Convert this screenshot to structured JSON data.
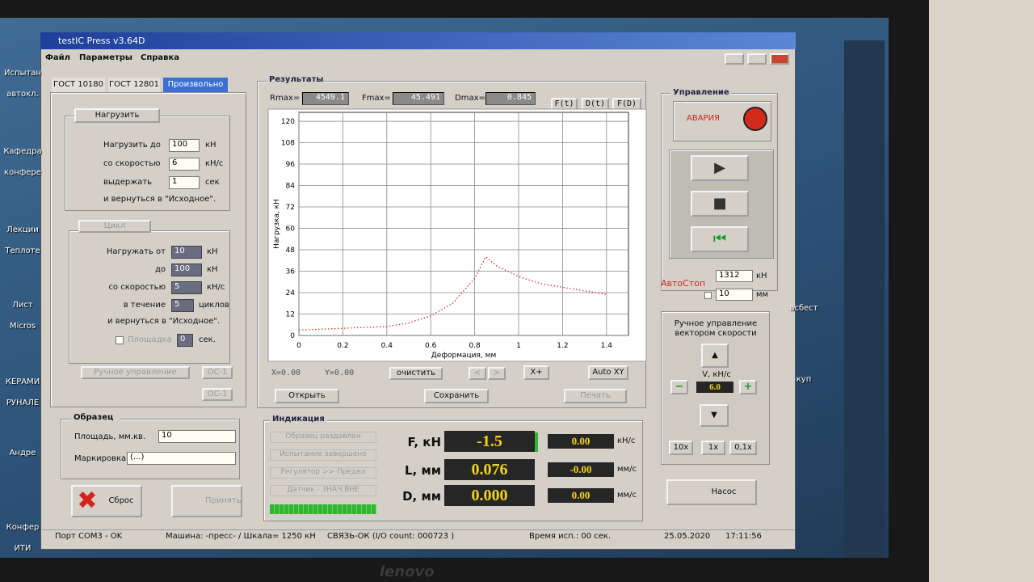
{
  "window": {
    "title": "testIC Press v3.64D",
    "menu": [
      "Файл",
      "Параметры",
      "Справка"
    ]
  },
  "tabs": [
    "ГОСТ 10180",
    "ГОСТ 12801",
    "Произвольно"
  ],
  "load": {
    "button": "Нагрузить",
    "rows": [
      {
        "label": "Нагрузить до",
        "value": "100",
        "unit": "кН"
      },
      {
        "label": "со скоростью",
        "value": "6",
        "unit": "кН/с"
      },
      {
        "label": "выдержать",
        "value": "1",
        "unit": "сек"
      }
    ],
    "return": "и вернуться в \"Исходное\"."
  },
  "cycle": {
    "button": "Цикл",
    "rows": [
      {
        "label": "Нагружать  от",
        "value": "10",
        "unit": "кН"
      },
      {
        "label": "до",
        "value": "100",
        "unit": "кН"
      },
      {
        "label": "со скоростью",
        "value": "5",
        "unit": "кН/с"
      },
      {
        "label": "в течение",
        "value": "5",
        "unit": "циклов"
      }
    ],
    "return": "и вернуться в \"Исходное\".",
    "platform": {
      "label": "Площадка",
      "value": "0",
      "unit": "сек."
    }
  },
  "manual_button": "Ручное управление",
  "os_buttons": [
    "ОС-1",
    "ОС-1"
  ],
  "sample": {
    "title": "Образец",
    "area_label": "Площадь, мм.кв.",
    "area": "10",
    "marking_label": "Маркировка",
    "marking": "(...)"
  },
  "reset": "Сброс",
  "accept": "Принять",
  "results": {
    "title": "Результаты",
    "stats": [
      {
        "label": "Rmax=",
        "value": "4549.1"
      },
      {
        "label": "Fmax=",
        "value": "45.491"
      },
      {
        "label": "Dmax=",
        "value": "0.845"
      }
    ],
    "modes": [
      "F(t)",
      "D(t)",
      "F(D)"
    ],
    "cursor": [
      "X=0.00",
      "Y=0.00"
    ],
    "clear": "очистить",
    "nav": [
      "<",
      ">"
    ],
    "x_plus": "X+",
    "auto": "Auto XY",
    "open": "Открыть",
    "save": "Сохранить",
    "print": "Печать"
  },
  "chart_data": {
    "type": "line",
    "x_label": "Деформация, мм",
    "y_label": "Нагрузка, кН",
    "x": [
      0,
      0.2,
      0.4,
      0.5,
      0.6,
      0.7,
      0.8,
      0.85,
      0.9,
      1.0,
      1.1,
      1.2,
      1.3,
      1.4
    ],
    "values": [
      3,
      4,
      5,
      7,
      11,
      18,
      32,
      44,
      39,
      33,
      29,
      27,
      25,
      23
    ],
    "color": "#e03020",
    "xlim": [
      0,
      1.5
    ],
    "ylim": [
      0,
      125
    ],
    "xticks": [
      0,
      0.2,
      0.4,
      0.6,
      0.8,
      1,
      1.2,
      1.4
    ],
    "yticks": [
      0,
      12,
      24,
      36,
      48,
      60,
      72,
      84,
      96,
      108,
      120
    ],
    "grid": true
  },
  "indication": {
    "title": "Индикация",
    "flags": [
      "Образец раздавлен",
      "Испытание завершено",
      "Регулятор >> Предел",
      "Датчик - ЗНАЧ.ВНЕ"
    ],
    "readings": [
      {
        "label": "F, кН",
        "value": "-1.5",
        "rate": "0.00",
        "rate_unit": "кН/с"
      },
      {
        "label": "L, мм",
        "value": "0.076",
        "rate": "-0.00",
        "rate_unit": "мм/с"
      },
      {
        "label": "D, мм",
        "value": "0.000",
        "rate": "0.00",
        "rate_unit": "мм/с"
      }
    ]
  },
  "control": {
    "title": "Управление",
    "alarm": "АВАРИЯ",
    "autostop": {
      "label": "АвтоСтоп",
      "force": "1312",
      "force_unit": "кН",
      "disp": "10",
      "disp_unit": "мм"
    },
    "vector": {
      "title": "Ручное управление вектором скорости",
      "label": "V, кН/с",
      "value": "6.0",
      "minus": "−",
      "plus": "+",
      "steps": [
        "10x",
        "1x",
        "0,1x"
      ]
    },
    "pump": "Насос"
  },
  "status": [
    "Порт COM3 - OK",
    "Машина: -пресс- / Шкала= 1250 кН",
    "СВЯЗЬ-ОК  (I/O count: 000723 )",
    "Время исп.: 00 сек.",
    "25.05.2020",
    "17:11:56"
  ],
  "desktop": [
    "Испытан автокл.",
    "Кафедра конфере",
    "Лекции Теплоте",
    "Лист Micros",
    "КЕРАМИ РУНАЛЕ",
    "Андре",
    "Конфер ИТИ",
    "асбест",
    "куп"
  ],
  "bezel": "lenovo"
}
